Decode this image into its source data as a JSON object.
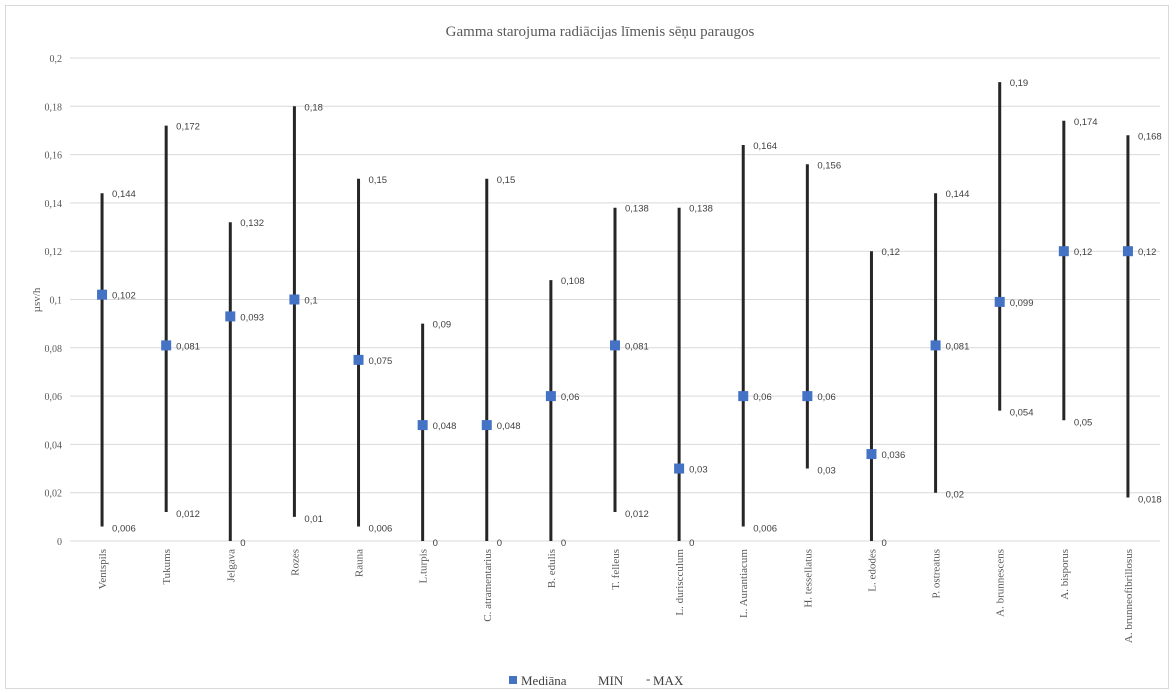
{
  "chart_data": {
    "type": "scatter",
    "title": "Gamma starojuma radiācijas līmenis  sēņu paraugos",
    "xlabel": "",
    "ylabel": "µsv/h",
    "ylim": [
      0,
      0.2
    ],
    "yticks": [
      "0",
      "0,02",
      "0,04",
      "0,06",
      "0,08",
      "0,1",
      "0,12",
      "0,14",
      "0,16",
      "0,18",
      "0,2"
    ],
    "grid": true,
    "legend_position": "bottom",
    "categories": [
      "Ventspils",
      "Tukums",
      "Jelgava",
      "Rozes",
      "Rauna",
      "L.turpis",
      "C. atramentarius",
      "B. edulis",
      "T. felleus",
      "L. duriscculum",
      "L. Aurantiacum",
      "H. tessellatus",
      "L. edodes",
      "P. ostreatus",
      "A. brunnescens",
      "A. bisporus",
      "A. brunneofibrillosus"
    ],
    "series": [
      {
        "name": "Mediāna",
        "color": "#4472c4",
        "values": [
          0.102,
          0.081,
          0.093,
          0.1,
          0.075,
          0.048,
          0.048,
          0.06,
          0.081,
          0.03,
          0.06,
          0.06,
          0.036,
          0.081,
          0.099,
          0.12,
          0.12
        ],
        "labels": [
          "0,102",
          "0,081",
          "0,093",
          "0,1",
          "0,075",
          "0,048",
          "0,048",
          "0,06",
          "0,081",
          "0,03",
          "0,06",
          "0,06",
          "0,036",
          "0,081",
          "0,099",
          "0,12",
          "0,12"
        ]
      },
      {
        "name": "MIN",
        "color": "#262626",
        "values": [
          0.006,
          0.012,
          0,
          0.01,
          0.006,
          0,
          0,
          0,
          0.012,
          0,
          0.006,
          0.03,
          0,
          0.02,
          0.054,
          0.05,
          0.018
        ],
        "labels": [
          "0,006",
          "0,012",
          "0",
          "0,01",
          "0,006",
          "0",
          "0",
          "0",
          "0,012",
          "0",
          "0,006",
          "0,03",
          "0",
          "0,02",
          "0,054",
          "0,05",
          "0,018"
        ]
      },
      {
        "name": "MAX",
        "color": "#262626",
        "values": [
          0.144,
          0.172,
          0.132,
          0.18,
          0.15,
          0.09,
          0.15,
          0.108,
          0.138,
          0.138,
          0.164,
          0.156,
          0.12,
          0.144,
          0.19,
          0.174,
          0.168
        ],
        "labels": [
          "0,144",
          "0,172",
          "0,132",
          "0,18",
          "0,15",
          "0,09",
          "0,15",
          "0,108",
          "0,138",
          "0,138",
          "0,164",
          "0,156",
          "0,12",
          "0,144",
          "0,19",
          "0,174",
          "0,168"
        ]
      }
    ]
  }
}
